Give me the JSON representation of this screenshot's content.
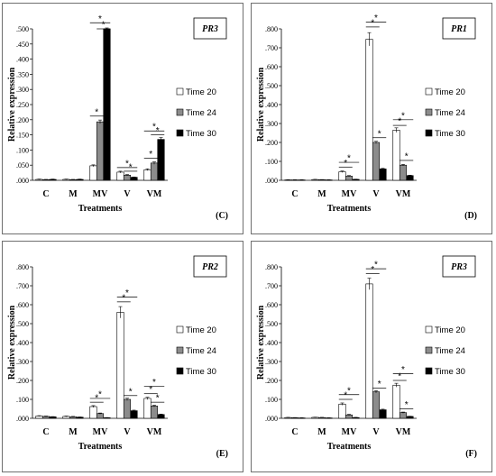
{
  "chart_data": [
    {
      "type": "bar",
      "panel_label": "(C)",
      "gene": "PR3",
      "xlabel": "Treatments",
      "ylabel": "Relative expression",
      "ylim": [
        0,
        0.5
      ],
      "yticks": [
        ".000",
        ".050",
        ".100",
        ".150",
        ".200",
        ".250",
        ".300",
        ".350",
        ".400",
        ".450",
        ".500"
      ],
      "categories": [
        "C",
        "M",
        "MV",
        "V",
        "VM"
      ],
      "series": [
        {
          "name": "Time 20",
          "color": "#ffffff",
          "values": [
            0.003,
            0.003,
            0.048,
            0.027,
            0.035
          ],
          "errors": [
            0.001,
            0.001,
            0.003,
            0.003,
            0.003
          ]
        },
        {
          "name": "Time 24",
          "color": "#8c8c8c",
          "values": [
            0.002,
            0.002,
            0.193,
            0.017,
            0.057
          ],
          "errors": [
            0.001,
            0.001,
            0.006,
            0.002,
            0.004
          ]
        },
        {
          "name": "Time 30",
          "color": "#000000",
          "values": [
            0.003,
            0.003,
            0.5,
            0.01,
            0.135
          ],
          "errors": [
            0.001,
            0.001,
            0.003,
            0.001,
            0.006
          ]
        }
      ],
      "brackets": [
        {
          "cat": 2,
          "from": 0,
          "to": 1,
          "y": 0.212,
          "label": "*"
        },
        {
          "cat": 2,
          "from": 0,
          "to": 2,
          "y": 0.52,
          "label": "*"
        },
        {
          "cat": 2,
          "from": 1,
          "to": 2,
          "y": 0.5,
          "label": "*"
        },
        {
          "cat": 3,
          "from": 0,
          "to": 2,
          "y": 0.042,
          "label": "*"
        },
        {
          "cat": 3,
          "from": 1,
          "to": 2,
          "y": 0.03,
          "label": "*"
        },
        {
          "cat": 4,
          "from": 0,
          "to": 1,
          "y": 0.073,
          "label": "*"
        },
        {
          "cat": 4,
          "from": 1,
          "to": 2,
          "y": 0.15,
          "label": "*"
        },
        {
          "cat": 4,
          "from": 0,
          "to": 2,
          "y": 0.163,
          "label": "*"
        }
      ]
    },
    {
      "type": "bar",
      "panel_label": "(D)",
      "gene": "PR1",
      "xlabel": "Treatments",
      "ylabel": "Relative expression",
      "ylim": [
        0,
        0.8
      ],
      "yticks": [
        ".000",
        ".100",
        ".200",
        ".300",
        ".400",
        ".500",
        ".600",
        ".700",
        ".800"
      ],
      "categories": [
        "C",
        "M",
        "MV",
        "V",
        "VM"
      ],
      "series": [
        {
          "name": "Time 20",
          "color": "#ffffff",
          "values": [
            0.002,
            0.004,
            0.045,
            0.745,
            0.265
          ],
          "errors": [
            0.001,
            0.001,
            0.004,
            0.035,
            0.012
          ]
        },
        {
          "name": "Time 24",
          "color": "#8c8c8c",
          "values": [
            0.002,
            0.003,
            0.022,
            0.2,
            0.08
          ],
          "errors": [
            0.001,
            0.001,
            0.003,
            0.006,
            0.004
          ]
        },
        {
          "name": "Time 30",
          "color": "#000000",
          "values": [
            0.002,
            0.002,
            0.005,
            0.06,
            0.025
          ],
          "errors": [
            0.001,
            0.001,
            0.001,
            0.003,
            0.002
          ]
        }
      ],
      "brackets": [
        {
          "cat": 2,
          "from": 0,
          "to": 1,
          "y": 0.07,
          "label": "*"
        },
        {
          "cat": 2,
          "from": 0,
          "to": 2,
          "y": 0.095,
          "label": "*"
        },
        {
          "cat": 3,
          "from": 0,
          "to": 1,
          "y": 0.81,
          "label": "*"
        },
        {
          "cat": 3,
          "from": 0,
          "to": 2,
          "y": 0.835,
          "label": "*"
        },
        {
          "cat": 3,
          "from": 1,
          "to": 2,
          "y": 0.225,
          "label": "*"
        },
        {
          "cat": 4,
          "from": 0,
          "to": 1,
          "y": 0.29,
          "label": "*"
        },
        {
          "cat": 4,
          "from": 0,
          "to": 2,
          "y": 0.32,
          "label": "*"
        },
        {
          "cat": 4,
          "from": 1,
          "to": 2,
          "y": 0.105,
          "label": "*"
        }
      ]
    },
    {
      "type": "bar",
      "panel_label": "(E)",
      "gene": "PR2",
      "xlabel": "Treatments",
      "ylabel": "Relative expression",
      "ylim": [
        0,
        0.8
      ],
      "yticks": [
        ".000",
        ".100",
        ".200",
        ".300",
        ".400",
        ".500",
        ".600",
        ".700",
        ".800"
      ],
      "categories": [
        "C",
        "M",
        "MV",
        "V",
        "VM"
      ],
      "series": [
        {
          "name": "Time 20",
          "color": "#ffffff",
          "values": [
            0.012,
            0.01,
            0.062,
            0.56,
            0.105
          ],
          "errors": [
            0.002,
            0.002,
            0.005,
            0.03,
            0.006
          ]
        },
        {
          "name": "Time 24",
          "color": "#8c8c8c",
          "values": [
            0.01,
            0.008,
            0.025,
            0.1,
            0.065
          ],
          "errors": [
            0.002,
            0.002,
            0.003,
            0.006,
            0.004
          ]
        },
        {
          "name": "Time 30",
          "color": "#000000",
          "values": [
            0.008,
            0.006,
            0.003,
            0.04,
            0.02
          ],
          "errors": [
            0.001,
            0.001,
            0.001,
            0.003,
            0.002
          ]
        }
      ],
      "brackets": [
        {
          "cat": 2,
          "from": 0,
          "to": 1,
          "y": 0.085,
          "label": "*"
        },
        {
          "cat": 2,
          "from": 0,
          "to": 2,
          "y": 0.105,
          "label": "*"
        },
        {
          "cat": 3,
          "from": 0,
          "to": 1,
          "y": 0.615,
          "label": "*"
        },
        {
          "cat": 3,
          "from": 0,
          "to": 2,
          "y": 0.64,
          "label": "*"
        },
        {
          "cat": 3,
          "from": 1,
          "to": 2,
          "y": 0.12,
          "label": "*"
        },
        {
          "cat": 4,
          "from": 0,
          "to": 1,
          "y": 0.13,
          "label": "*"
        },
        {
          "cat": 4,
          "from": 0,
          "to": 2,
          "y": 0.17,
          "label": "*"
        },
        {
          "cat": 4,
          "from": 1,
          "to": 2,
          "y": 0.085,
          "label": "*"
        }
      ]
    },
    {
      "type": "bar",
      "panel_label": "(F)",
      "gene": "PR3",
      "xlabel": "Treatments",
      "ylabel": "Relative expression",
      "ylim": [
        0,
        0.8
      ],
      "yticks": [
        ".000",
        ".100",
        ".200",
        ".300",
        ".400",
        ".500",
        ".600",
        ".700",
        ".800"
      ],
      "categories": [
        "C",
        "M",
        "MV",
        "V",
        "VM"
      ],
      "series": [
        {
          "name": "Time 20",
          "color": "#ffffff",
          "values": [
            0.004,
            0.005,
            0.075,
            0.71,
            0.175
          ],
          "errors": [
            0.001,
            0.001,
            0.006,
            0.03,
            0.01
          ]
        },
        {
          "name": "Time 24",
          "color": "#8c8c8c",
          "values": [
            0.003,
            0.004,
            0.018,
            0.14,
            0.03
          ],
          "errors": [
            0.001,
            0.001,
            0.003,
            0.006,
            0.003
          ]
        },
        {
          "name": "Time 30",
          "color": "#000000",
          "values": [
            0.002,
            0.002,
            0.004,
            0.045,
            0.01
          ],
          "errors": [
            0.001,
            0.001,
            0.001,
            0.003,
            0.001
          ]
        }
      ],
      "brackets": [
        {
          "cat": 2,
          "from": 0,
          "to": 1,
          "y": 0.1,
          "label": "*"
        },
        {
          "cat": 2,
          "from": 0,
          "to": 2,
          "y": 0.125,
          "label": "*"
        },
        {
          "cat": 3,
          "from": 0,
          "to": 1,
          "y": 0.765,
          "label": "*"
        },
        {
          "cat": 3,
          "from": 0,
          "to": 2,
          "y": 0.79,
          "label": "*"
        },
        {
          "cat": 3,
          "from": 1,
          "to": 2,
          "y": 0.16,
          "label": "*"
        },
        {
          "cat": 4,
          "from": 0,
          "to": 1,
          "y": 0.2,
          "label": "*"
        },
        {
          "cat": 4,
          "from": 0,
          "to": 2,
          "y": 0.235,
          "label": "*"
        },
        {
          "cat": 4,
          "from": 1,
          "to": 2,
          "y": 0.05,
          "label": "*"
        }
      ]
    }
  ]
}
